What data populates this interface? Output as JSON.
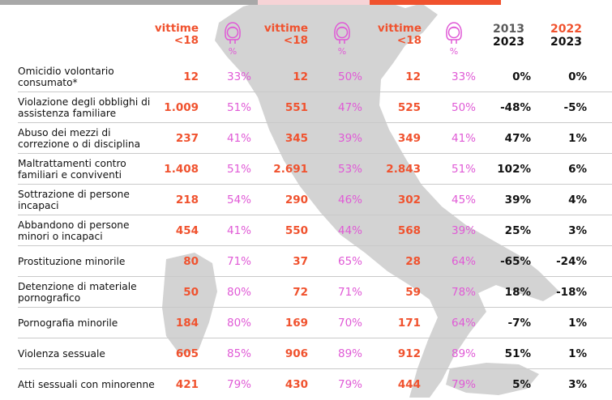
{
  "header": {
    "groups": [
      {
        "label_top": "vittime",
        "label_bottom": "<18",
        "pct_label": "%",
        "icon": "girl-icon"
      },
      {
        "label_top": "vittime",
        "label_bottom": "<18",
        "pct_label": "%",
        "icon": "girl-icon"
      },
      {
        "label_top": "vittime",
        "label_bottom": "<18",
        "pct_label": "%",
        "icon": "girl-icon"
      }
    ],
    "variation_2013": {
      "from": "2013",
      "to": "2023"
    },
    "variation_2022": {
      "from": "2022",
      "to": "2023"
    }
  },
  "colors": {
    "orange": "#f0522e",
    "pink": "#e05ad6",
    "grey_bar": "#a8a8a8",
    "pale_pink_bar": "#f6d3d6",
    "map": "#d3d3d3"
  },
  "chart_data": {
    "type": "table",
    "columns": [
      "",
      "vittime <18",
      "%",
      "vittime <18",
      "%",
      "vittime <18",
      "%",
      "2013 2023",
      "2022 2023"
    ],
    "rows": [
      {
        "label": "Omicidio volontario consumato*",
        "v1": "12",
        "p1": "33%",
        "v2": "12",
        "p2": "50%",
        "v3": "12",
        "p3": "33%",
        "d1": "0%",
        "d2": "0%"
      },
      {
        "label": "Violazione degli obblighi di assistenza familiare",
        "v1": "1.009",
        "p1": "51%",
        "v2": "551",
        "p2": "47%",
        "v3": "525",
        "p3": "50%",
        "d1": "-48%",
        "d2": "-5%"
      },
      {
        "label": "Abuso dei mezzi di correzione o di disciplina",
        "v1": "237",
        "p1": "41%",
        "v2": "345",
        "p2": "39%",
        "v3": "349",
        "p3": "41%",
        "d1": "47%",
        "d2": "1%"
      },
      {
        "label": "Maltrattamenti contro familiari e conviventi",
        "v1": "1.408",
        "p1": "51%",
        "v2": "2.691",
        "p2": "53%",
        "v3": "2.843",
        "p3": "51%",
        "d1": "102%",
        "d2": "6%"
      },
      {
        "label": "Sottrazione di persone incapaci",
        "v1": "218",
        "p1": "54%",
        "v2": "290",
        "p2": "46%",
        "v3": "302",
        "p3": "45%",
        "d1": "39%",
        "d2": "4%"
      },
      {
        "label": "Abbandono di persone minori o incapaci",
        "v1": "454",
        "p1": "41%",
        "v2": "550",
        "p2": "44%",
        "v3": "568",
        "p3": "39%",
        "d1": "25%",
        "d2": "3%"
      },
      {
        "label": "Prostituzione minorile",
        "v1": "80",
        "p1": "71%",
        "v2": "37",
        "p2": "65%",
        "v3": "28",
        "p3": "64%",
        "d1": "-65%",
        "d2": "-24%"
      },
      {
        "label": "Detenzione di materiale pornografico",
        "v1": "50",
        "p1": "80%",
        "v2": "72",
        "p2": "71%",
        "v3": "59",
        "p3": "78%",
        "d1": "18%",
        "d2": "-18%"
      },
      {
        "label": "Pornografia minorile",
        "v1": "184",
        "p1": "80%",
        "v2": "169",
        "p2": "70%",
        "v3": "171",
        "p3": "64%",
        "d1": "-7%",
        "d2": "1%"
      },
      {
        "label": "Violenza sessuale",
        "v1": "605",
        "p1": "85%",
        "v2": "906",
        "p2": "89%",
        "v3": "912",
        "p3": "89%",
        "d1": "51%",
        "d2": "1%"
      },
      {
        "label": "Atti sessuali con minorenne",
        "v1": "421",
        "p1": "79%",
        "v2": "430",
        "p2": "79%",
        "v3": "444",
        "p3": "79%",
        "d1": "5%",
        "d2": "3%"
      }
    ]
  }
}
